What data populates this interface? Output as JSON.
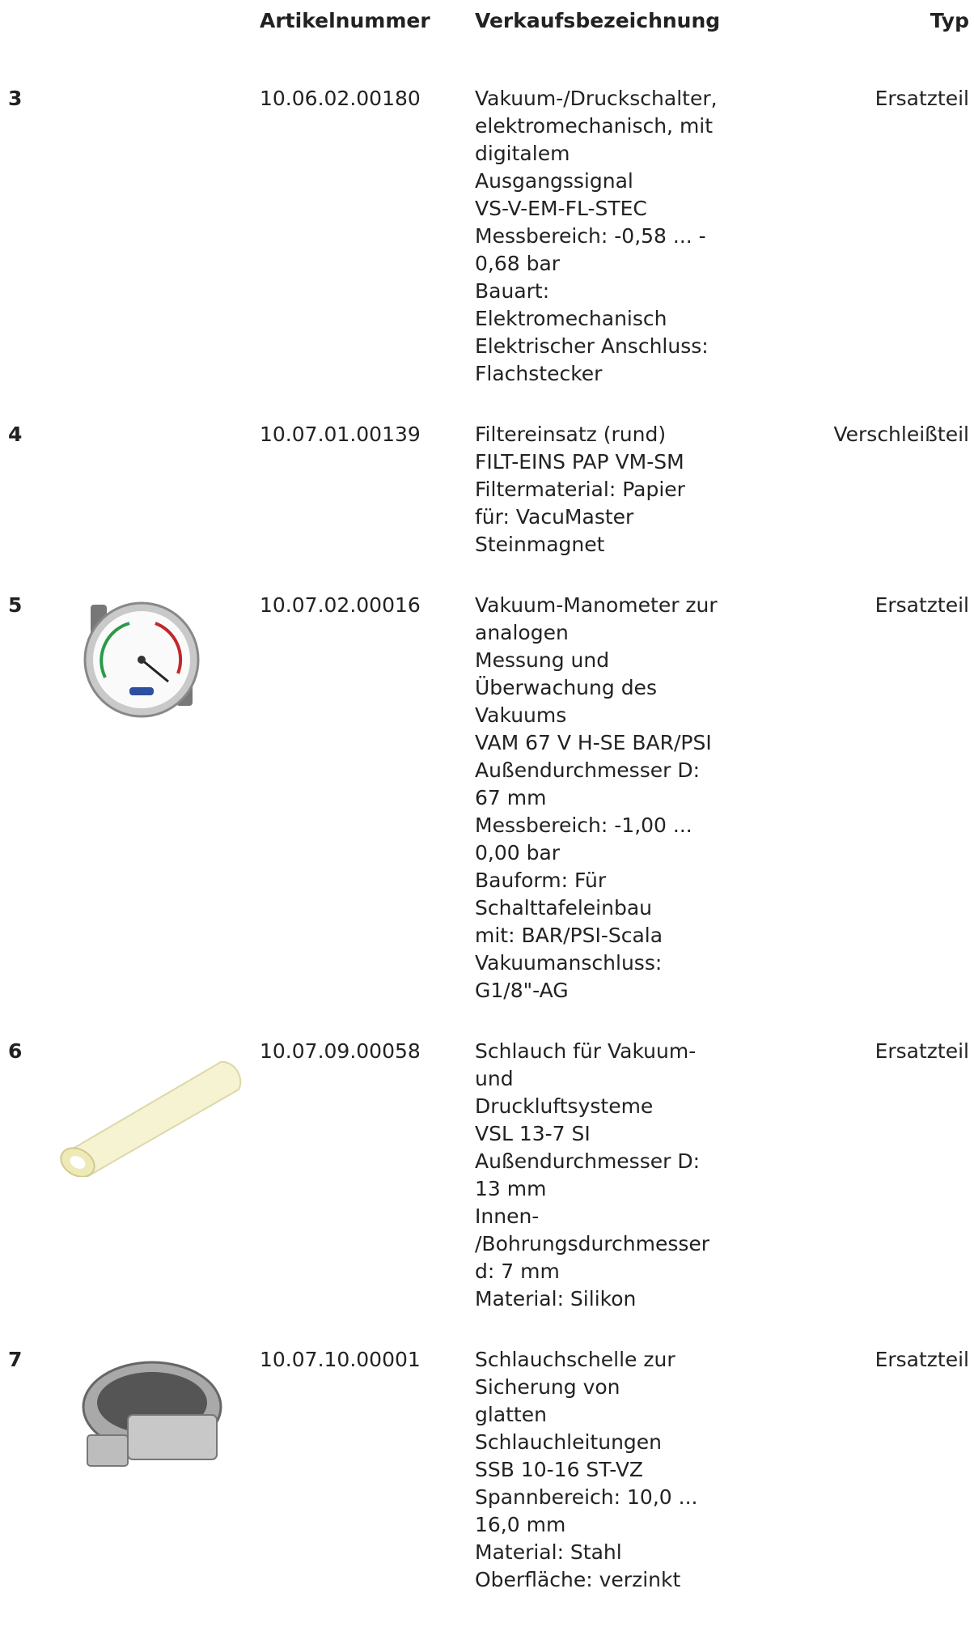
{
  "header": {
    "columns": [
      "Artikelnummer",
      "Verkaufsbezeichnung",
      "Typ"
    ]
  },
  "rows": [
    {
      "position": 3,
      "article": "10.06.02.00180",
      "description": [
        "Vakuum-/Druckschalter,",
        "elektromechanisch, mit",
        "digitalem",
        "Ausgangssignal",
        "VS-V-EM-FL-STEC",
        "Messbereich: -0,58 ... -",
        "0,68 bar",
        "Bauart:",
        "Elektromechanisch",
        "Elektrischer Anschluss:",
        "Flachstecker"
      ],
      "type": "Ersatzteil"
    },
    {
      "position": 4,
      "article": "10.07.01.00139",
      "description": [
        "Filtereinsatz (rund)",
        "FILT-EINS PAP VM-SM",
        "Filtermaterial: Papier",
        "für: VacuMaster",
        "Steinmagnet"
      ],
      "type": "Verschleißteil"
    },
    {
      "position": 5,
      "article": "10.07.02.00016",
      "description": [
        "Vakuum-Manometer zur",
        "analogen",
        "Messung und",
        "Überwachung des",
        "Vakuums",
        "VAM 67 V H-SE BAR/PSI",
        "Außendurchmesser D:",
        "67 mm",
        "Messbereich: -1,00 ...",
        "0,00 bar",
        "Bauform: Für",
        "Schalttafeleinbau",
        "mit: BAR/PSI-Scala",
        "Vakuumanschluss:",
        "G1/8\"-AG"
      ],
      "type": "Ersatzteil"
    },
    {
      "position": 6,
      "article": "10.07.09.00058",
      "description": [
        "Schlauch für Vakuum-",
        "und",
        "Druckluftsysteme",
        "VSL 13-7 SI",
        "Außendurchmesser D:",
        "13 mm",
        "Innen-",
        "/Bohrungsdurchmesser",
        "d: 7 mm",
        "Material: Silikon"
      ],
      "type": "Ersatzteil"
    },
    {
      "position": 7,
      "article": "10.07.10.00001",
      "description": [
        "Schlauchschelle zur",
        "Sicherung von",
        "glatten",
        "Schlauchleitungen",
        "SSB 10-16 ST-VZ",
        "Spannbereich: 10,0 ...",
        "16,0 mm",
        "Material: Stahl",
        "Oberfläche: verzinkt"
      ],
      "type": "Ersatzteil"
    }
  ]
}
